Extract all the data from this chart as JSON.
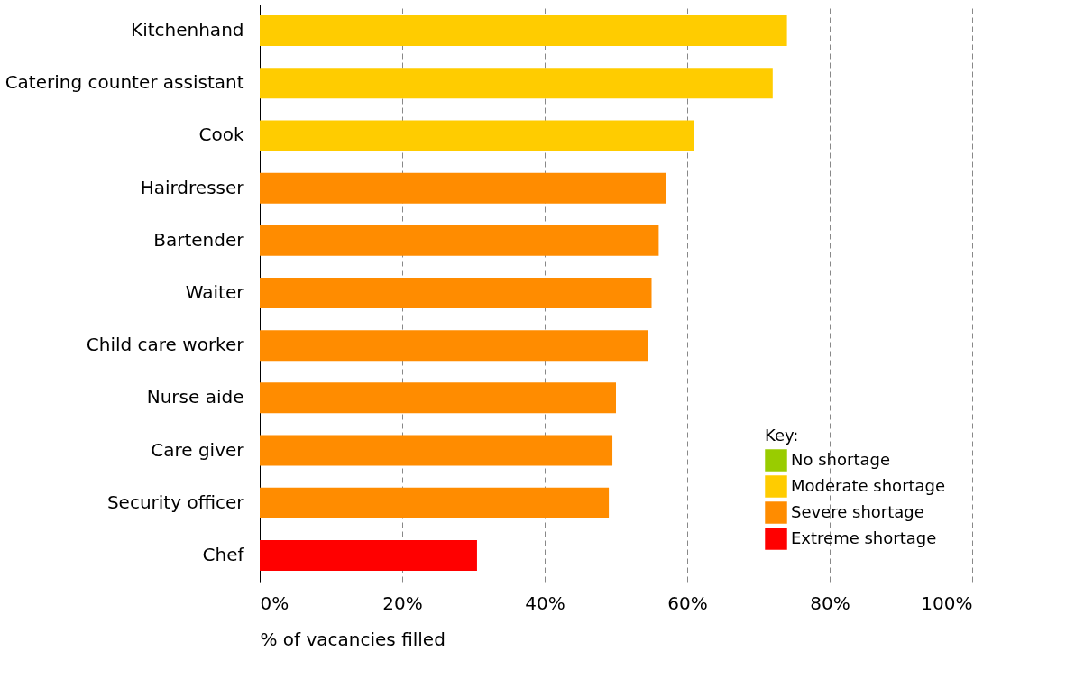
{
  "chart_data": {
    "type": "bar",
    "orientation": "horizontal",
    "xlabel": "% of vacancies filled",
    "legend_title": "Key:",
    "categories": [
      "Kitchenhand",
      "Catering counter assistant",
      "Cook",
      "Hairdresser",
      "Bartender",
      "Waiter",
      "Child care worker",
      "Nurse aide",
      "Care giver",
      "Security officer",
      "Chef"
    ],
    "series": [
      {
        "name": "No shortage",
        "color": "#99cc00",
        "values": [
          null,
          null,
          null,
          null,
          null,
          null,
          null,
          null,
          null,
          null,
          null
        ]
      },
      {
        "name": "Moderate shortage",
        "color": "#ffcc00",
        "values": [
          74,
          72,
          61,
          null,
          null,
          null,
          null,
          null,
          null,
          null,
          null
        ]
      },
      {
        "name": "Severe shortage",
        "color": "#ff8c00",
        "values": [
          null,
          null,
          null,
          57,
          56,
          55,
          54.5,
          50,
          49.5,
          49,
          null
        ]
      },
      {
        "name": "Extreme shortage",
        "color": "#ff0000",
        "values": [
          null,
          null,
          null,
          null,
          null,
          null,
          null,
          null,
          null,
          null,
          30.5
        ]
      }
    ],
    "xlim": [
      0,
      100
    ],
    "xticks": [
      {
        "value": 0,
        "label": "0%"
      },
      {
        "value": 20,
        "label": "20%"
      },
      {
        "value": 40,
        "label": "40%"
      },
      {
        "value": 60,
        "label": "60%"
      },
      {
        "value": 80,
        "label": "80%"
      },
      {
        "value": 100,
        "label": "100%"
      }
    ],
    "grid": "x",
    "legend": "bottom right"
  }
}
